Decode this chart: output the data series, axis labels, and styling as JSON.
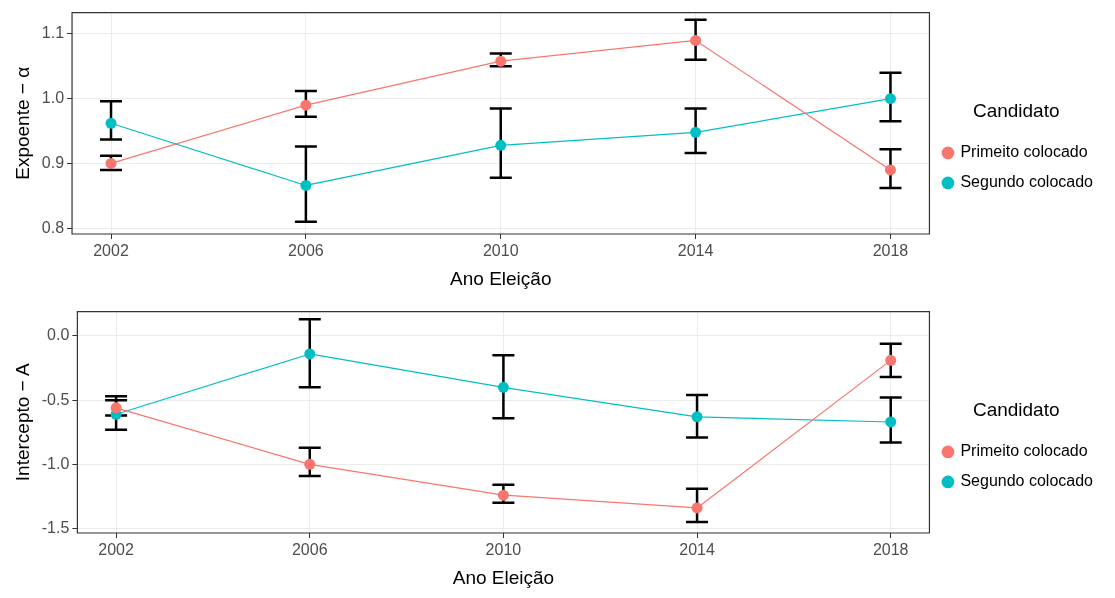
{
  "chart_data": [
    {
      "type": "line",
      "xlabel": "Ano Eleição",
      "ylabel": "Expoente − α",
      "legend_title": "Candidato",
      "legend": "right",
      "grid": true,
      "marker": "circle",
      "line_style": "solid",
      "x": [
        2002,
        2006,
        2010,
        2014,
        2018
      ],
      "xlim": [
        2001.2,
        2018.8
      ],
      "xticks": [
        2002,
        2006,
        2010,
        2014,
        2018
      ],
      "ylim": [
        0.791,
        1.133
      ],
      "yticks": [
        {
          "value": 0.8,
          "label": "0.8"
        },
        {
          "value": 0.9,
          "label": "0.9"
        },
        {
          "value": 1.0,
          "label": "1.0"
        },
        {
          "value": 1.1,
          "label": "1.1"
        }
      ],
      "series": [
        {
          "name": "Primeito colocado",
          "color": "#f8766d",
          "values": [
            0.9,
            0.99,
            1.058,
            1.09,
            0.89
          ],
          "errors": [
            [
              0.89,
              0.912
            ],
            [
              0.972,
              1.012
            ],
            [
              1.05,
              1.07
            ],
            [
              1.06,
              1.122
            ],
            [
              0.862,
              0.922
            ]
          ]
        },
        {
          "name": "Segundo colocado",
          "color": "#00bfc4",
          "values": [
            0.962,
            0.866,
            0.928,
            0.948,
            1.0
          ],
          "errors": [
            [
              0.937,
              0.996
            ],
            [
              0.81,
              0.926
            ],
            [
              0.878,
              0.985
            ],
            [
              0.916,
              0.985
            ],
            [
              0.965,
              1.04
            ]
          ]
        }
      ]
    },
    {
      "type": "line",
      "xlabel": "Ano Eleição",
      "ylabel": "Intercepto − A",
      "legend_title": "Candidato",
      "legend": "right",
      "grid": true,
      "marker": "circle",
      "line_style": "solid",
      "x": [
        2002,
        2006,
        2010,
        2014,
        2018
      ],
      "xlim": [
        2001.2,
        2018.8
      ],
      "xticks": [
        2002,
        2006,
        2010,
        2014,
        2018
      ],
      "ylim": [
        -1.535,
        0.19
      ],
      "yticks": [
        {
          "value": -1.5,
          "label": "-1.5"
        },
        {
          "value": -1.0,
          "label": "-1.0"
        },
        {
          "value": -0.5,
          "label": "-0.5"
        },
        {
          "value": 0,
          "label": "0.0"
        }
      ],
      "series": [
        {
          "name": "Primeito colocado",
          "color": "#f8766d",
          "values": [
            -0.56,
            -1.0,
            -1.24,
            -1.34,
            -0.19
          ],
          "errors": [
            [
              -0.62,
              -0.5
            ],
            [
              -1.09,
              -0.87
            ],
            [
              -1.3,
              -1.16
            ],
            [
              -1.45,
              -1.19
            ],
            [
              -0.32,
              -0.06
            ]
          ]
        },
        {
          "name": "Segundo colocado",
          "color": "#00bfc4",
          "values": [
            -0.61,
            -0.14,
            -0.4,
            -0.63,
            -0.67
          ],
          "errors": [
            [
              -0.73,
              -0.47
            ],
            [
              -0.4,
              0.13
            ],
            [
              -0.64,
              -0.15
            ],
            [
              -0.79,
              -0.46
            ],
            [
              -0.83,
              -0.48
            ]
          ]
        }
      ]
    }
  ]
}
